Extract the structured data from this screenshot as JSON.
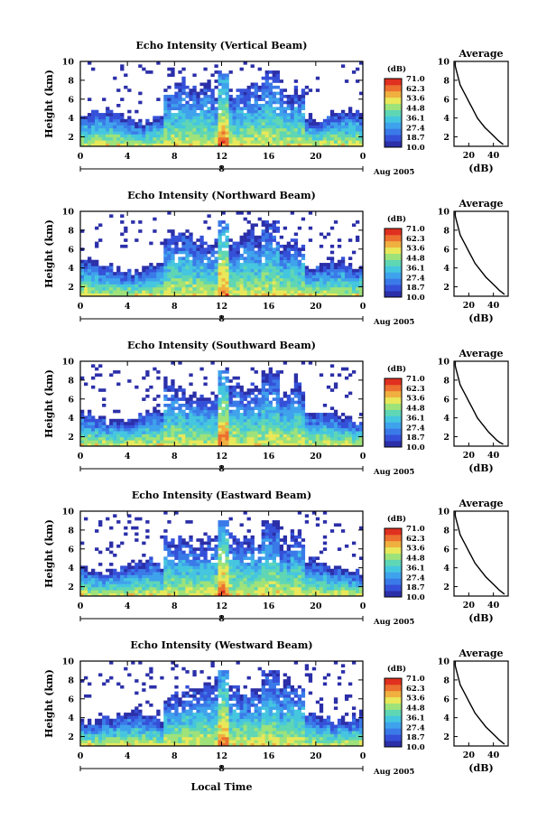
{
  "chart_data": [
    {
      "type": "heatmap",
      "title": "Echo Intensity (Vertical Beam)",
      "ylabel": "Height (km)",
      "y_ticks": [
        "2",
        "4",
        "6",
        "8",
        "10"
      ],
      "ylim": [
        1,
        10
      ],
      "x_ticks": [
        "0",
        "4",
        "8",
        "12",
        "16",
        "20",
        "0"
      ],
      "xlim": [
        0,
        24
      ],
      "date_marker": "8",
      "date_label": "Aug 2005",
      "colorbar": {
        "unit": "(dB)",
        "ticks": [
          "71.0",
          "62.3",
          "53.6",
          "44.8",
          "36.1",
          "27.4",
          "18.7",
          "10.0"
        ],
        "range": [
          10.0,
          71.0
        ]
      },
      "profile": {
        "title": "Average",
        "xlabel": "(dB)",
        "x_ticks": [
          "20",
          "40"
        ],
        "xlim": [
          8,
          52
        ],
        "y_ticks": [
          "2",
          "4",
          "6",
          "8",
          "10"
        ],
        "ylim": [
          1,
          10
        ],
        "points": [
          [
            48,
            1.2
          ],
          [
            46,
            1.4
          ],
          [
            44,
            1.6
          ],
          [
            41,
            2.0
          ],
          [
            37,
            2.5
          ],
          [
            33,
            3.0
          ],
          [
            30,
            3.5
          ],
          [
            27,
            4.0
          ],
          [
            25,
            4.5
          ],
          [
            23,
            5.0
          ],
          [
            21,
            5.5
          ],
          [
            19,
            6.0
          ],
          [
            17,
            6.5
          ],
          [
            15,
            7.0
          ],
          [
            13,
            7.5
          ],
          [
            12,
            8.0
          ],
          [
            11,
            8.5
          ],
          [
            10,
            9.0
          ],
          [
            9,
            9.5
          ],
          [
            9,
            10
          ]
        ]
      }
    },
    {
      "type": "heatmap",
      "title": "Echo Intensity (Northward Beam)",
      "ylabel": "Height (km)",
      "y_ticks": [
        "2",
        "4",
        "6",
        "8",
        "10"
      ],
      "ylim": [
        1,
        10
      ],
      "x_ticks": [
        "0",
        "4",
        "8",
        "12",
        "16",
        "20",
        "0"
      ],
      "xlim": [
        0,
        24
      ],
      "date_marker": "8",
      "date_label": "Aug 2005",
      "colorbar": {
        "unit": "(dB)",
        "ticks": [
          "71.0",
          "62.3",
          "53.6",
          "44.8",
          "36.1",
          "27.4",
          "18.7",
          "10.0"
        ],
        "range": [
          10.0,
          71.0
        ]
      },
      "profile": {
        "title": "Average",
        "xlabel": "(dB)",
        "x_ticks": [
          "20",
          "40"
        ],
        "xlim": [
          8,
          52
        ],
        "y_ticks": [
          "2",
          "4",
          "6",
          "8",
          "10"
        ],
        "ylim": [
          1,
          10
        ],
        "points": [
          [
            49,
            1.2
          ],
          [
            47,
            1.4
          ],
          [
            45,
            1.6
          ],
          [
            42,
            2.0
          ],
          [
            38,
            2.5
          ],
          [
            34,
            3.0
          ],
          [
            31,
            3.5
          ],
          [
            28,
            4.0
          ],
          [
            25,
            4.5
          ],
          [
            23,
            5.0
          ],
          [
            21,
            5.5
          ],
          [
            19,
            6.0
          ],
          [
            17,
            6.5
          ],
          [
            15,
            7.0
          ],
          [
            13,
            7.5
          ],
          [
            12,
            8.0
          ],
          [
            11,
            8.5
          ],
          [
            10,
            9.0
          ],
          [
            9,
            9.5
          ],
          [
            9,
            10
          ]
        ]
      }
    },
    {
      "type": "heatmap",
      "title": "Echo Intensity (Southward Beam)",
      "ylabel": "Height (km)",
      "y_ticks": [
        "2",
        "4",
        "6",
        "8",
        "10"
      ],
      "ylim": [
        1,
        10
      ],
      "x_ticks": [
        "0",
        "4",
        "8",
        "12",
        "16",
        "20",
        "0"
      ],
      "xlim": [
        0,
        24
      ],
      "date_marker": "8",
      "date_label": "Aug 2005",
      "colorbar": {
        "unit": "(dB)",
        "ticks": [
          "71.0",
          "62.3",
          "53.6",
          "44.8",
          "36.1",
          "27.4",
          "18.7",
          "10.0"
        ],
        "range": [
          10.0,
          71.0
        ]
      },
      "profile": {
        "title": "Average",
        "xlabel": "(dB)",
        "x_ticks": [
          "20",
          "40"
        ],
        "xlim": [
          8,
          52
        ],
        "y_ticks": [
          "2",
          "4",
          "6",
          "8",
          "10"
        ],
        "ylim": [
          1,
          10
        ],
        "points": [
          [
            48,
            1.2
          ],
          [
            45,
            1.4
          ],
          [
            43,
            1.6
          ],
          [
            40,
            2.0
          ],
          [
            36,
            2.5
          ],
          [
            33,
            3.0
          ],
          [
            30,
            3.5
          ],
          [
            27,
            4.0
          ],
          [
            25,
            4.5
          ],
          [
            23,
            5.0
          ],
          [
            21,
            5.5
          ],
          [
            19,
            6.0
          ],
          [
            17,
            6.5
          ],
          [
            15,
            7.0
          ],
          [
            13,
            7.5
          ],
          [
            12,
            8.0
          ],
          [
            11,
            8.5
          ],
          [
            10,
            9.0
          ],
          [
            9,
            9.5
          ],
          [
            9,
            10
          ]
        ]
      }
    },
    {
      "type": "heatmap",
      "title": "Echo Intensity (Eastward Beam)",
      "ylabel": "Height (km)",
      "y_ticks": [
        "2",
        "4",
        "6",
        "8",
        "10"
      ],
      "ylim": [
        1,
        10
      ],
      "x_ticks": [
        "0",
        "4",
        "8",
        "12",
        "16",
        "20",
        "0"
      ],
      "xlim": [
        0,
        24
      ],
      "date_marker": "8",
      "date_label": "Aug 2005",
      "colorbar": {
        "unit": "(dB)",
        "ticks": [
          "71.0",
          "62.3",
          "53.6",
          "44.8",
          "36.1",
          "27.4",
          "18.7",
          "10.0"
        ],
        "range": [
          10.0,
          71.0
        ]
      },
      "profile": {
        "title": "Average",
        "xlabel": "(dB)",
        "x_ticks": [
          "20",
          "40"
        ],
        "xlim": [
          8,
          52
        ],
        "y_ticks": [
          "2",
          "4",
          "6",
          "8",
          "10"
        ],
        "ylim": [
          1,
          10
        ],
        "points": [
          [
            49,
            1.2
          ],
          [
            47,
            1.4
          ],
          [
            45,
            1.6
          ],
          [
            42,
            2.0
          ],
          [
            38,
            2.5
          ],
          [
            34,
            3.0
          ],
          [
            31,
            3.5
          ],
          [
            28,
            4.0
          ],
          [
            25,
            4.5
          ],
          [
            23,
            5.0
          ],
          [
            21,
            5.5
          ],
          [
            19,
            6.0
          ],
          [
            17,
            6.5
          ],
          [
            15,
            7.0
          ],
          [
            13,
            7.5
          ],
          [
            12,
            8.0
          ],
          [
            11,
            8.5
          ],
          [
            10,
            9.0
          ],
          [
            9,
            9.5
          ],
          [
            9,
            10
          ]
        ]
      }
    },
    {
      "type": "heatmap",
      "title": "Echo Intensity (Westward Beam)",
      "ylabel": "Height (km)",
      "y_ticks": [
        "2",
        "4",
        "6",
        "8",
        "10"
      ],
      "ylim": [
        1,
        10
      ],
      "x_ticks": [
        "0",
        "4",
        "8",
        "12",
        "16",
        "20",
        "0"
      ],
      "xlim": [
        0,
        24
      ],
      "date_marker": "8",
      "date_label": "Aug 2005",
      "xlabel": "Local Time",
      "colorbar": {
        "unit": "(dB)",
        "ticks": [
          "71.0",
          "62.3",
          "53.6",
          "44.8",
          "36.1",
          "27.4",
          "18.7",
          "10.0"
        ],
        "range": [
          10.0,
          71.0
        ]
      },
      "profile": {
        "title": "Average",
        "xlabel": "(dB)",
        "x_ticks": [
          "20",
          "40"
        ],
        "xlim": [
          8,
          52
        ],
        "y_ticks": [
          "2",
          "4",
          "6",
          "8",
          "10"
        ],
        "ylim": [
          1,
          10
        ],
        "points": [
          [
            49,
            1.2
          ],
          [
            47,
            1.4
          ],
          [
            45,
            1.6
          ],
          [
            42,
            2.0
          ],
          [
            38,
            2.5
          ],
          [
            34,
            3.0
          ],
          [
            31,
            3.5
          ],
          [
            28,
            4.0
          ],
          [
            25,
            4.5
          ],
          [
            23,
            5.0
          ],
          [
            21,
            5.5
          ],
          [
            19,
            6.0
          ],
          [
            17,
            6.5
          ],
          [
            15,
            7.0
          ],
          [
            13,
            7.5
          ],
          [
            12,
            8.0
          ],
          [
            11,
            8.5
          ],
          [
            10,
            9.0
          ],
          [
            9,
            9.5
          ],
          [
            9,
            10
          ]
        ]
      }
    }
  ],
  "colors": {
    "colormap": [
      "#2b2fa8",
      "#3550d8",
      "#3a7ae8",
      "#3fa2ec",
      "#45c6df",
      "#5fd6b4",
      "#9ee27a",
      "#e8e85a",
      "#f0b040",
      "#ec7030",
      "#e03020"
    ]
  }
}
